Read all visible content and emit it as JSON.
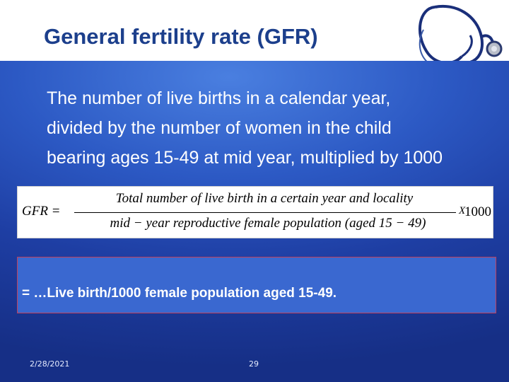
{
  "slide": {
    "title": "General fertility rate (GFR)",
    "definition_lines": [
      "The number of live births in a calendar year,",
      "divided by the number of women in the child",
      "bearing ages 15-49 at mid year, multiplied by 1000"
    ],
    "formula": {
      "lhs": "GFR =",
      "numerator": "Total  number of live birth  in  a  certain  year and  locality",
      "denominator": "mid − year  reproductive  female  population  (aged   15 − 49)",
      "times": "X",
      "multiplier": "1000"
    },
    "result": "= …Live birth/1000 female population aged 15-49.",
    "footer": {
      "date": "2/28/2021",
      "page": "29"
    },
    "icon": "stethoscope-icon",
    "colors": {
      "title": "#1c3f8c",
      "panel": "#2c59c4",
      "result_box": "#3a68d0"
    }
  }
}
